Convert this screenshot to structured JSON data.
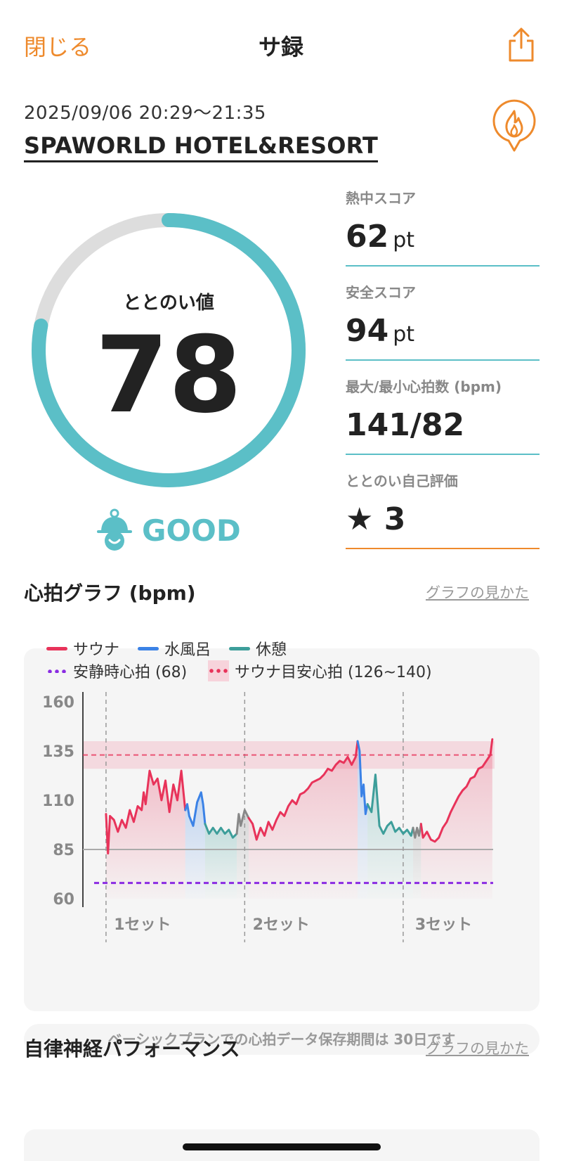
{
  "header": {
    "close_label": "閉じる",
    "title": "サ録",
    "share_icon": "share-icon"
  },
  "visit": {
    "datetime": "2025/09/06 20:29〜21:35",
    "venue": "SPAWORLD HOTEL&RESORT",
    "venue_icon": "flame-pin-icon"
  },
  "gauge": {
    "label": "ととのい値",
    "value": "78",
    "fraction": 0.78
  },
  "rating": {
    "label": "GOOD",
    "icon": "mascot-icon"
  },
  "stats": [
    {
      "label": "熱中スコア",
      "value": "62",
      "unit": "pt"
    },
    {
      "label": "安全スコア",
      "value": "94",
      "unit": "pt"
    },
    {
      "label": "最大/最小心拍数 (bpm)",
      "value": "141/82",
      "unit": ""
    },
    {
      "label": "ととのい自己評価",
      "value": "★ 3",
      "unit": ""
    }
  ],
  "heart_section": {
    "title": "心拍グラフ (bpm)",
    "howto": "グラフの見かた"
  },
  "legend": {
    "sauna": "サウナ",
    "cold_bath": "水風呂",
    "rest": "休憩",
    "resting_hr": "安静時心拍 (68)",
    "target_hr": "サウナ目安心拍 (126~140)"
  },
  "colors": {
    "sauna": "#e8335a",
    "cold_bath": "#3b82e6",
    "rest": "#3d9e9a",
    "resting": "#8a2be2",
    "transition": "#888888",
    "accent": "#5bbfc7",
    "orange": "#ee8a2c"
  },
  "chart_data": {
    "type": "line",
    "ylim": [
      60,
      160
    ],
    "yticks": [
      160,
      135,
      110,
      85,
      60
    ],
    "x_range": [
      0,
      100
    ],
    "set_labels": [
      {
        "label": "1セット",
        "at": 5
      },
      {
        "label": "2セット",
        "at": 40
      },
      {
        "label": "3セット",
        "at": 81
      }
    ],
    "set_dividers": [
      3,
      38,
      78
    ],
    "resting_hr": 68,
    "target_band": [
      126,
      140
    ],
    "target_line": 133,
    "baseline": 85,
    "series": [
      {
        "name": "サウナ",
        "phase": "sauna",
        "points": [
          [
            3,
            103
          ],
          [
            3.5,
            83
          ],
          [
            4,
            102
          ],
          [
            5,
            100
          ],
          [
            6,
            94
          ],
          [
            7,
            100
          ],
          [
            8,
            96
          ],
          [
            9,
            105
          ],
          [
            10,
            99
          ],
          [
            11,
            107
          ],
          [
            12,
            105
          ],
          [
            12.5,
            114
          ],
          [
            13,
            108
          ],
          [
            14,
            125
          ],
          [
            15,
            118
          ],
          [
            16,
            121
          ],
          [
            17,
            110
          ],
          [
            18,
            120
          ],
          [
            19,
            104
          ],
          [
            20,
            118
          ],
          [
            21,
            110
          ],
          [
            22,
            125
          ],
          [
            23,
            105
          ]
        ]
      },
      {
        "name": "水風呂",
        "phase": "cold_bath",
        "points": [
          [
            23,
            105
          ],
          [
            23.5,
            108
          ],
          [
            24,
            102
          ],
          [
            25,
            97
          ],
          [
            26,
            109
          ],
          [
            27,
            114
          ],
          [
            27.5,
            108
          ],
          [
            28,
            98
          ]
        ]
      },
      {
        "name": "休憩",
        "phase": "rest",
        "points": [
          [
            28,
            98
          ],
          [
            29,
            93
          ],
          [
            30,
            96
          ],
          [
            31,
            93
          ],
          [
            32,
            96
          ],
          [
            33,
            93
          ],
          [
            34,
            95
          ],
          [
            35,
            91
          ],
          [
            36,
            93
          ]
        ]
      },
      {
        "name": "",
        "phase": "transition",
        "points": [
          [
            36,
            93
          ],
          [
            36.5,
            103
          ],
          [
            37,
            97
          ],
          [
            38,
            105
          ],
          [
            39,
            101
          ]
        ]
      },
      {
        "name": "サウナ",
        "phase": "sauna",
        "points": [
          [
            39,
            101
          ],
          [
            40,
            98
          ],
          [
            41,
            90
          ],
          [
            42,
            96
          ],
          [
            43,
            92
          ],
          [
            44,
            99
          ],
          [
            45,
            95
          ],
          [
            46,
            100
          ],
          [
            47,
            104
          ],
          [
            48,
            102
          ],
          [
            49,
            107
          ],
          [
            50,
            110
          ],
          [
            51,
            108
          ],
          [
            52,
            113
          ],
          [
            53,
            114
          ],
          [
            54,
            116
          ],
          [
            55,
            119
          ],
          [
            56,
            120
          ],
          [
            57,
            121
          ],
          [
            58,
            123
          ],
          [
            59,
            126
          ],
          [
            60,
            125
          ],
          [
            61,
            128
          ],
          [
            62,
            130
          ],
          [
            63,
            129
          ],
          [
            64,
            132
          ],
          [
            65,
            128
          ],
          [
            66,
            132
          ],
          [
            66.5,
            140
          ]
        ]
      },
      {
        "name": "水風呂",
        "phase": "cold_bath",
        "points": [
          [
            66.5,
            140
          ],
          [
            67,
            135
          ],
          [
            67.5,
            112
          ],
          [
            68,
            118
          ],
          [
            68.5,
            103
          ],
          [
            69,
            108
          ]
        ]
      },
      {
        "name": "休憩",
        "phase": "rest",
        "points": [
          [
            69,
            108
          ],
          [
            70,
            104
          ],
          [
            71,
            123
          ],
          [
            72,
            97
          ],
          [
            73,
            93
          ],
          [
            74,
            97
          ],
          [
            75,
            99
          ],
          [
            76,
            94
          ],
          [
            77,
            96
          ],
          [
            78,
            93
          ],
          [
            79,
            95
          ],
          [
            80,
            92
          ],
          [
            80.5,
            96
          ]
        ]
      },
      {
        "name": "",
        "phase": "transition",
        "points": [
          [
            80.5,
            96
          ],
          [
            81,
            91
          ],
          [
            81.5,
            96
          ],
          [
            82,
            92
          ],
          [
            82.5,
            98
          ]
        ]
      },
      {
        "name": "サウナ",
        "phase": "sauna",
        "points": [
          [
            82.5,
            98
          ],
          [
            83,
            91
          ],
          [
            84,
            94
          ],
          [
            85,
            90
          ],
          [
            86,
            89
          ],
          [
            87,
            91
          ],
          [
            88,
            96
          ],
          [
            89,
            99
          ],
          [
            90,
            104
          ],
          [
            91,
            108
          ],
          [
            92,
            112
          ],
          [
            93,
            115
          ],
          [
            94,
            117
          ],
          [
            95,
            121
          ],
          [
            96,
            122
          ],
          [
            97,
            126
          ],
          [
            98,
            127
          ],
          [
            99,
            130
          ],
          [
            100,
            133
          ],
          [
            100.5,
            141
          ]
        ]
      }
    ]
  },
  "storage_notice": "ベーシックプランでの心拍データ保存期間は 30日です",
  "autonomic_section": {
    "title": "自律神経パフォーマンス",
    "howto": "グラフの見かた"
  }
}
